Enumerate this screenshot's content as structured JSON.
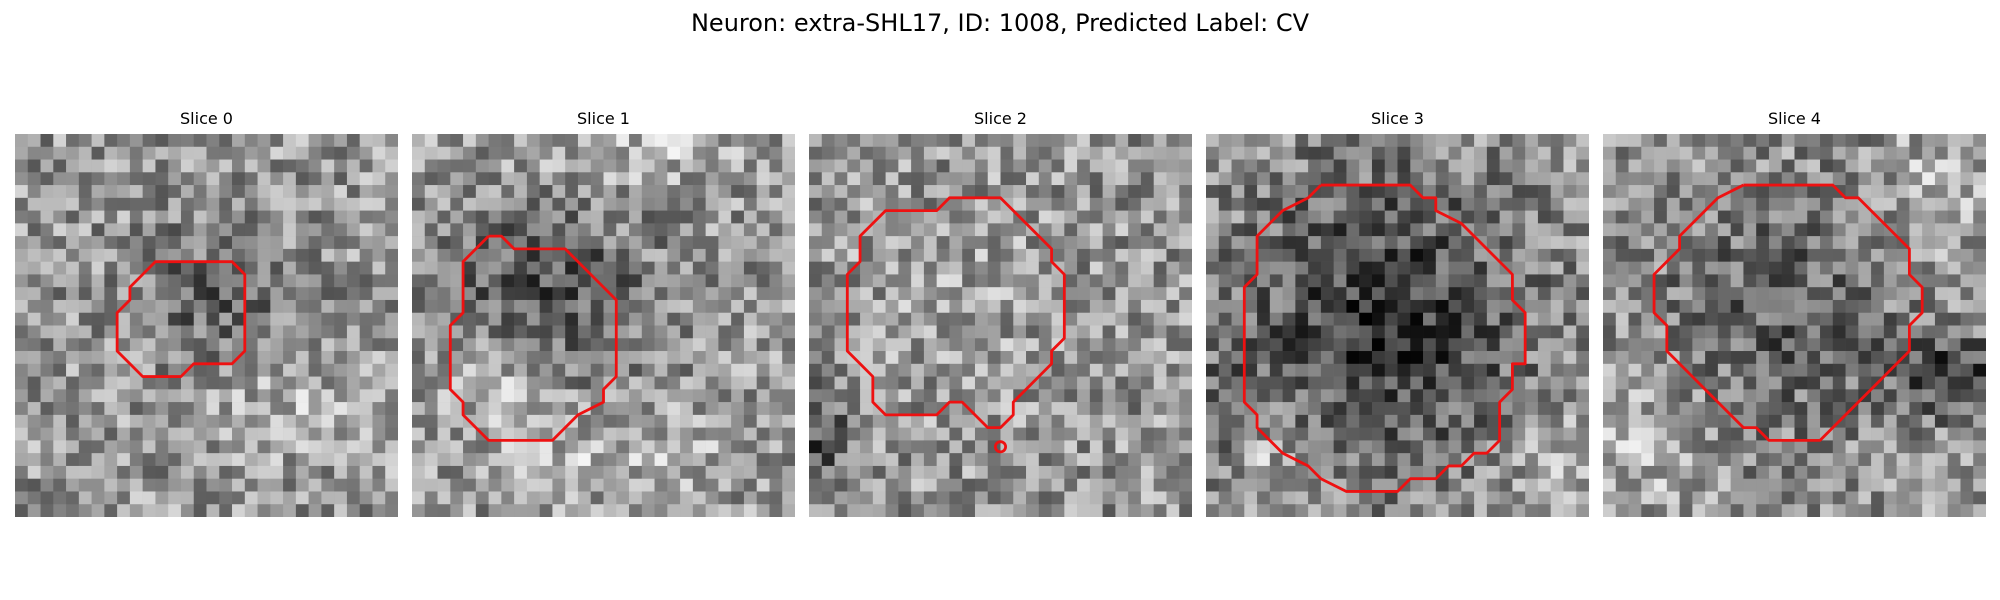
{
  "title": "Neuron: extra-SHL17, ID: 1008, Predicted Label: CV",
  "contour_color": "#ee1111",
  "panels": [
    {
      "label": "Slice 0",
      "contour": [
        [
          10,
          11
        ],
        [
          11,
          10
        ],
        [
          17,
          10
        ],
        [
          18,
          11
        ],
        [
          18,
          17
        ],
        [
          17,
          18
        ],
        [
          14,
          18
        ],
        [
          13,
          19
        ],
        [
          10,
          19
        ],
        [
          9,
          18
        ],
        [
          8,
          17
        ],
        [
          8,
          14
        ],
        [
          9,
          13
        ],
        [
          9,
          12
        ],
        [
          10,
          11
        ]
      ],
      "dark_blobs": [
        {
          "cx": 15,
          "cy": 13,
          "rx": 6,
          "ry": 5,
          "strength": 50
        }
      ],
      "bright_blobs": [
        {
          "cx": 21,
          "cy": 22,
          "rx": 7,
          "ry": 4,
          "strength": 30
        }
      ]
    },
    {
      "label": "Slice 1",
      "contour": [
        [
          6,
          8
        ],
        [
          7,
          8
        ],
        [
          8,
          9
        ],
        [
          12,
          9
        ],
        [
          14,
          11
        ],
        [
          16,
          13
        ],
        [
          16,
          19
        ],
        [
          15,
          20
        ],
        [
          15,
          21
        ],
        [
          13,
          22
        ],
        [
          12,
          23
        ],
        [
          11,
          24
        ],
        [
          6,
          24
        ],
        [
          5,
          23
        ],
        [
          4,
          22
        ],
        [
          4,
          21
        ],
        [
          3,
          20
        ],
        [
          3,
          15
        ],
        [
          4,
          14
        ],
        [
          4,
          10
        ],
        [
          5,
          9
        ],
        [
          6,
          8
        ]
      ],
      "dark_blobs": [
        {
          "cx": 10,
          "cy": 12,
          "rx": 8,
          "ry": 6,
          "strength": 70
        }
      ],
      "bright_blobs": [
        {
          "cx": 7,
          "cy": 19,
          "rx": 4,
          "ry": 4,
          "strength": 40
        },
        {
          "cx": 17,
          "cy": 25,
          "rx": 9,
          "ry": 3,
          "strength": 35
        },
        {
          "cx": 18,
          "cy": 1,
          "rx": 10,
          "ry": 3,
          "strength": 35
        }
      ]
    },
    {
      "label": "Slice 2",
      "contour": [
        [
          9,
          6
        ],
        [
          10,
          6
        ],
        [
          11,
          5
        ],
        [
          15,
          5
        ],
        [
          16,
          6
        ],
        [
          17,
          7
        ],
        [
          18,
          8
        ],
        [
          19,
          9
        ],
        [
          19,
          10
        ],
        [
          20,
          11
        ],
        [
          20,
          16
        ],
        [
          19,
          17
        ],
        [
          19,
          18
        ],
        [
          18,
          19
        ],
        [
          17,
          20
        ],
        [
          16,
          21
        ],
        [
          16,
          22
        ],
        [
          15,
          23
        ],
        [
          14,
          23
        ],
        [
          13,
          22
        ],
        [
          12,
          21
        ],
        [
          11,
          21
        ],
        [
          10,
          22
        ],
        [
          6,
          22
        ],
        [
          5,
          21
        ],
        [
          5,
          19
        ],
        [
          4,
          18
        ],
        [
          3,
          17
        ],
        [
          3,
          11
        ],
        [
          4,
          10
        ],
        [
          4,
          8
        ],
        [
          5,
          7
        ],
        [
          6,
          6
        ],
        [
          9,
          6
        ]
      ],
      "dark_blobs": [
        {
          "cx": 1,
          "cy": 24,
          "rx": 2,
          "ry": 5,
          "strength": 70
        }
      ],
      "bright_blobs": [
        {
          "cx": 11,
          "cy": 13,
          "rx": 7,
          "ry": 7,
          "strength": 15
        }
      ]
    },
    {
      "label": "Slice 3",
      "contour": [
        [
          9,
          4
        ],
        [
          16,
          4
        ],
        [
          17,
          5
        ],
        [
          18,
          5
        ],
        [
          18,
          6
        ],
        [
          20,
          7
        ],
        [
          21,
          8
        ],
        [
          22,
          9
        ],
        [
          24,
          11
        ],
        [
          24,
          13
        ],
        [
          25,
          14
        ],
        [
          25,
          18
        ],
        [
          24,
          18
        ],
        [
          24,
          20
        ],
        [
          23,
          21
        ],
        [
          23,
          24
        ],
        [
          22,
          25
        ],
        [
          21,
          25
        ],
        [
          20,
          26
        ],
        [
          19,
          26
        ],
        [
          18,
          27
        ],
        [
          16,
          27
        ],
        [
          15,
          28
        ],
        [
          11,
          28
        ],
        [
          9,
          27
        ],
        [
          8,
          26
        ],
        [
          6,
          25
        ],
        [
          5,
          24
        ],
        [
          4,
          23
        ],
        [
          4,
          22
        ],
        [
          3,
          21
        ],
        [
          3,
          12
        ],
        [
          4,
          11
        ],
        [
          4,
          8
        ],
        [
          6,
          6
        ],
        [
          8,
          5
        ],
        [
          9,
          4
        ]
      ],
      "dark_blobs": [
        {
          "cx": 14,
          "cy": 15,
          "rx": 11,
          "ry": 12,
          "strength": 95
        },
        {
          "cx": 1,
          "cy": 24,
          "rx": 2,
          "ry": 6,
          "strength": 60
        }
      ],
      "bright_blobs": [
        {
          "cx": 4,
          "cy": 26,
          "rx": 4,
          "ry": 4,
          "strength": 45
        },
        {
          "cx": 27,
          "cy": 26,
          "rx": 4,
          "ry": 4,
          "strength": 40
        }
      ]
    },
    {
      "label": "Slice 4",
      "contour": [
        [
          11,
          4
        ],
        [
          18,
          4
        ],
        [
          19,
          5
        ],
        [
          20,
          5
        ],
        [
          21,
          6
        ],
        [
          22,
          7
        ],
        [
          23,
          8
        ],
        [
          24,
          9
        ],
        [
          24,
          11
        ],
        [
          25,
          12
        ],
        [
          25,
          14
        ],
        [
          24,
          15
        ],
        [
          24,
          17
        ],
        [
          23,
          18
        ],
        [
          22,
          19
        ],
        [
          21,
          20
        ],
        [
          20,
          21
        ],
        [
          19,
          22
        ],
        [
          18,
          23
        ],
        [
          17,
          24
        ],
        [
          13,
          24
        ],
        [
          12,
          23
        ],
        [
          11,
          23
        ],
        [
          10,
          22
        ],
        [
          9,
          21
        ],
        [
          8,
          20
        ],
        [
          7,
          19
        ],
        [
          6,
          18
        ],
        [
          5,
          17
        ],
        [
          5,
          15
        ],
        [
          4,
          14
        ],
        [
          4,
          11
        ],
        [
          5,
          10
        ],
        [
          6,
          9
        ],
        [
          6,
          8
        ],
        [
          7,
          7
        ],
        [
          8,
          6
        ],
        [
          9,
          5
        ],
        [
          11,
          4
        ]
      ],
      "dark_blobs": [
        {
          "cx": 14,
          "cy": 14,
          "rx": 10,
          "ry": 10,
          "strength": 55
        },
        {
          "cx": 28,
          "cy": 19,
          "rx": 5,
          "ry": 3,
          "strength": 90
        }
      ],
      "bright_blobs": [
        {
          "cx": 3,
          "cy": 24,
          "rx": 5,
          "ry": 5,
          "strength": 40
        },
        {
          "cx": 26,
          "cy": 5,
          "rx": 4,
          "ry": 5,
          "strength": 40
        }
      ]
    }
  ]
}
